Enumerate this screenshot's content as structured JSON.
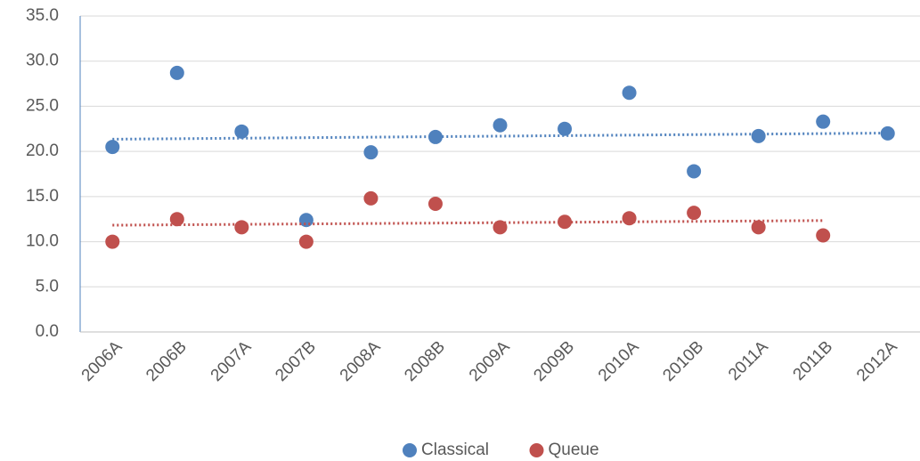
{
  "chart_data": {
    "type": "scatter",
    "categories": [
      "2006A",
      "2006B",
      "2007A",
      "2007B",
      "2008A",
      "2008B",
      "2009A",
      "2009B",
      "2010A",
      "2010B",
      "2011A",
      "2011B",
      "2012A"
    ],
    "series": [
      {
        "name": "Classical",
        "color": "#4f81bd",
        "trendline": true,
        "values": [
          20.5,
          28.7,
          22.2,
          12.4,
          19.9,
          21.6,
          22.9,
          22.5,
          26.5,
          17.8,
          21.7,
          23.3,
          22.0
        ]
      },
      {
        "name": "Queue",
        "color": "#c0504d",
        "trendline": true,
        "values": [
          10.0,
          12.5,
          11.6,
          10.0,
          14.8,
          14.2,
          11.6,
          12.2,
          12.6,
          13.2,
          11.6,
          10.7,
          null
        ]
      }
    ],
    "ylim": [
      0,
      35
    ],
    "yticks": [
      {
        "value": 0,
        "label": "0.0"
      },
      {
        "value": 5,
        "label": "5.0"
      },
      {
        "value": 10,
        "label": "10.0"
      },
      {
        "value": 15,
        "label": "15.0"
      },
      {
        "value": 20,
        "label": "20.0"
      },
      {
        "value": 25,
        "label": "25.0"
      },
      {
        "value": 30,
        "label": "30.0"
      },
      {
        "value": 35,
        "label": "35.0"
      }
    ],
    "grid": true,
    "legend": "bottom"
  }
}
